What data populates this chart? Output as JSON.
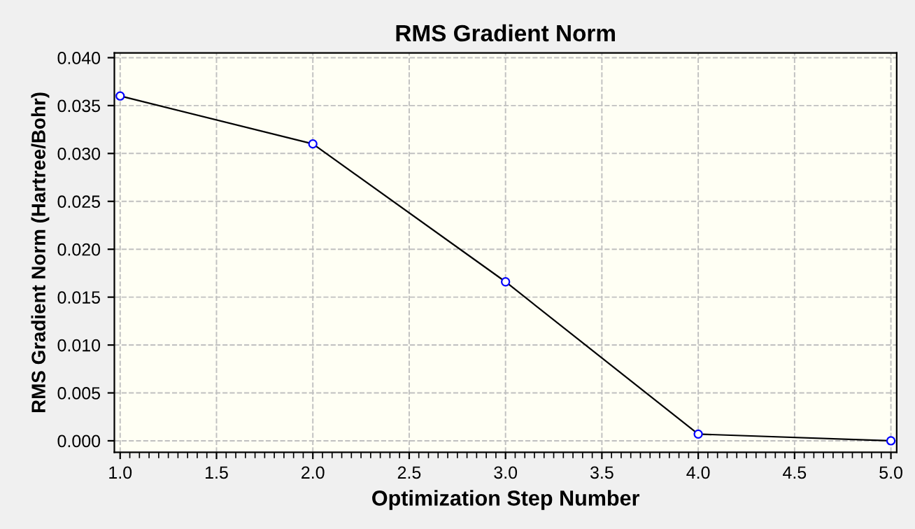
{
  "chart_data": {
    "type": "line",
    "title": "RMS Gradient Norm",
    "xlabel": "Optimization Step Number",
    "ylabel": "RMS Gradient Norm (Hartree/Bohr)",
    "x": [
      1,
      2,
      3,
      4,
      5
    ],
    "series": [
      {
        "color": "#000000",
        "values": [
          0.036,
          0.031,
          0.0166,
          0.0007,
          0.0
        ]
      }
    ],
    "marker": "circle",
    "line_style": "solid",
    "grid": true,
    "xlim": [
      0.97,
      5.03
    ],
    "ylim": [
      -0.0012,
      0.0405
    ],
    "xticks": [
      {
        "value": 1.0,
        "label": "1.0"
      },
      1.5,
      {
        "value": 2.0,
        "label": "2.0"
      },
      2.5,
      {
        "value": 3.0,
        "label": "3.0"
      },
      3.5,
      {
        "value": 4.0,
        "label": "4.0"
      },
      4.5,
      {
        "value": 5.0,
        "label": "5.0"
      }
    ],
    "yticks": [
      {
        "value": 0.0,
        "label": "0.000"
      },
      {
        "value": 0.005,
        "label": "0.005"
      },
      {
        "value": 0.01,
        "label": "0.010"
      },
      {
        "value": 0.015,
        "label": "0.015"
      },
      {
        "value": 0.02,
        "label": "0.020"
      },
      {
        "value": 0.025,
        "label": "0.025"
      },
      {
        "value": 0.03,
        "label": "0.030"
      },
      {
        "value": 0.035,
        "label": "0.035"
      },
      {
        "value": 0.04,
        "label": "0.040"
      }
    ]
  }
}
